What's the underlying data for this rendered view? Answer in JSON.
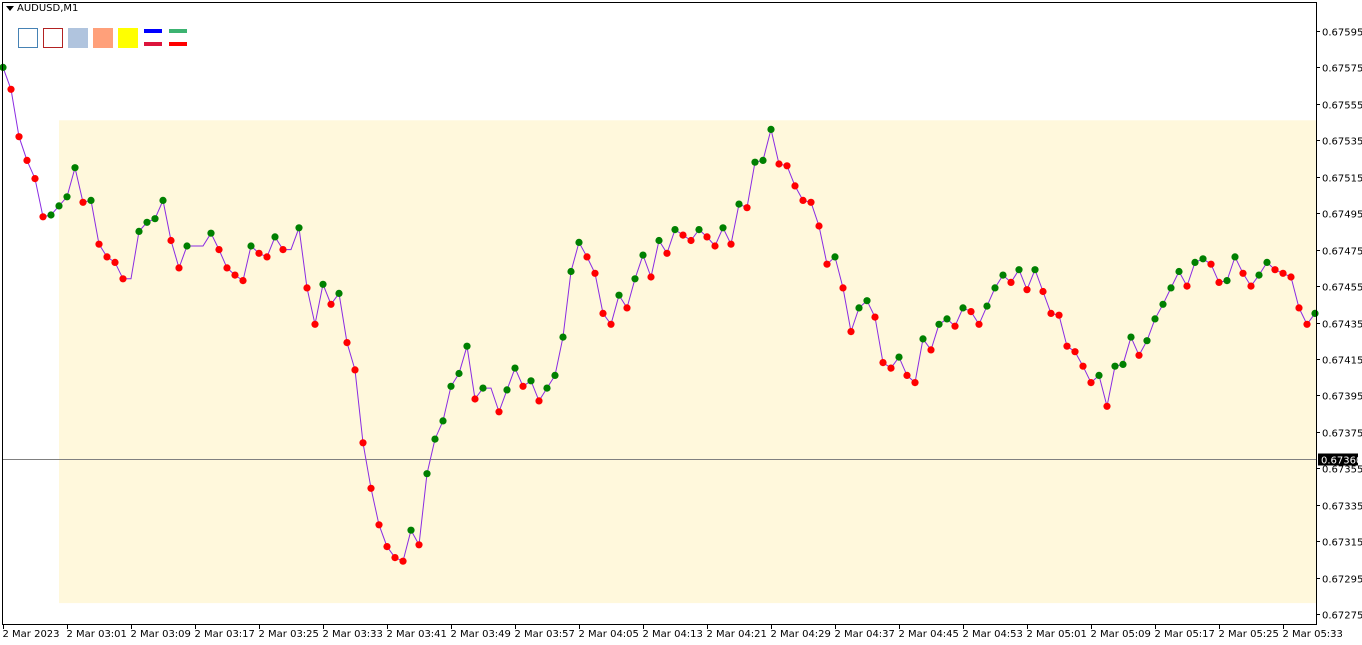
{
  "header": {
    "symbol_label": "AUDUSD,M1"
  },
  "toolbar": {
    "tools": [
      {
        "name": "rectangle-outline-blue-tool",
        "border": "#4682b4",
        "fill": "#ffffff"
      },
      {
        "name": "rectangle-outline-red-tool",
        "border": "#b22222",
        "fill": "#ffffff"
      },
      {
        "name": "rectangle-filled-steelblue-tool",
        "border": "#b0c4de",
        "fill": "#b0c4de"
      },
      {
        "name": "rectangle-filled-salmon-tool",
        "border": "#ffa07a",
        "fill": "#ffa07a"
      },
      {
        "name": "rectangle-filled-yellow-tool",
        "border": "#ffff00",
        "fill": "#ffff00"
      }
    ],
    "line_tools": [
      {
        "name": "line-pair-blue-crimson-tool",
        "top": "#0000ff",
        "bottom": "#dc143c"
      },
      {
        "name": "line-pair-green-red-tool",
        "top": "#3cb371",
        "bottom": "#ff0000"
      }
    ]
  },
  "chart_data": {
    "type": "line",
    "symbol": "AUDUSD",
    "timeframe": "M1",
    "date": "2 Mar 2023",
    "start_time": "02:53",
    "interval_minutes": 1,
    "values": [
      0.67575,
      0.67563,
      0.67537,
      0.67524,
      0.67514,
      0.67493,
      0.67494,
      0.67499,
      0.67504,
      0.6752,
      0.67501,
      0.67502,
      0.67478,
      0.67471,
      0.67468,
      0.67459,
      0.67459,
      0.67485,
      0.6749,
      0.67492,
      0.67502,
      0.6748,
      0.67465,
      0.67477,
      0.67477,
      0.67477,
      0.67484,
      0.67475,
      0.67465,
      0.67461,
      0.67458,
      0.67477,
      0.67473,
      0.67471,
      0.67482,
      0.67475,
      0.67475,
      0.67487,
      0.67454,
      0.67434,
      0.67456,
      0.67445,
      0.67451,
      0.67424,
      0.67409,
      0.67369,
      0.67344,
      0.67324,
      0.67312,
      0.67306,
      0.67304,
      0.67321,
      0.67313,
      0.67352,
      0.67371,
      0.67381,
      0.674,
      0.67407,
      0.67422,
      0.67393,
      0.67399,
      0.67399,
      0.67386,
      0.67398,
      0.6741,
      0.674,
      0.67403,
      0.67392,
      0.67399,
      0.67406,
      0.67427,
      0.67463,
      0.67479,
      0.67471,
      0.67462,
      0.6744,
      0.67434,
      0.6745,
      0.67443,
      0.67459,
      0.67472,
      0.6746,
      0.6748,
      0.67473,
      0.67486,
      0.67483,
      0.6748,
      0.67486,
      0.67482,
      0.67477,
      0.67487,
      0.67478,
      0.675,
      0.67498,
      0.67523,
      0.67524,
      0.67541,
      0.67522,
      0.67521,
      0.6751,
      0.67502,
      0.67501,
      0.67488,
      0.67467,
      0.67471,
      0.67454,
      0.6743,
      0.67443,
      0.67447,
      0.67438,
      0.67413,
      0.6741,
      0.67416,
      0.67406,
      0.67402,
      0.67426,
      0.6742,
      0.67434,
      0.67437,
      0.67433,
      0.67443,
      0.67441,
      0.67434,
      0.67444,
      0.67454,
      0.67461,
      0.67457,
      0.67464,
      0.67453,
      0.67464,
      0.67452,
      0.6744,
      0.67439,
      0.67422,
      0.67419,
      0.67411,
      0.67402,
      0.67406,
      0.67389,
      0.67411,
      0.67412,
      0.67427,
      0.67417,
      0.67425,
      0.67437,
      0.67445,
      0.67454,
      0.67463,
      0.67455,
      0.67468,
      0.6747,
      0.67467,
      0.67457,
      0.67458,
      0.67471,
      0.67462,
      0.67455,
      0.67461,
      0.67468,
      0.67464,
      0.67462,
      0.6746,
      0.67443,
      0.67434,
      0.6744
    ],
    "directions": "GRRRRRGGGGRGRRRRNGGGGRRGNNGRRRRGRRGRNGRRGRGRRRRRRRRGRGGGGGGRGNRGGRGRGGGGGRRRRGRGGRGRGRRGRRGRGRGGGRRRRRRRGRRGGRRRGRRGRGGRGRRGGGRGRGRRRRRRRGRGGGRGGGGGRGGRRGGRRGGRRRRRG",
    "direction_colors": {
      "G": "#008000",
      "R": "#ff0000"
    },
    "line_color": "#8a2be2",
    "zone": {
      "price_top": 0.67546,
      "price_bottom": 0.67281,
      "start_time": "03:00",
      "color": "#fff8dc"
    },
    "bid_line": {
      "price": 0.6736,
      "label": "0.67360",
      "color": "#808080"
    },
    "ylim": [
      0.672685,
      0.676035
    ],
    "yticks": [
      "0.67595",
      "0.67575",
      "0.67555",
      "0.67535",
      "0.67515",
      "0.67495",
      "0.67475",
      "0.67455",
      "0.67435",
      "0.67415",
      "0.67395",
      "0.67375",
      "0.67355",
      "0.67335",
      "0.67315",
      "0.67295",
      "0.67275"
    ],
    "xticks": [
      "2 Mar 2023",
      "2 Mar 03:01",
      "2 Mar 03:09",
      "2 Mar 03:17",
      "2 Mar 03:25",
      "2 Mar 03:33",
      "2 Mar 03:41",
      "2 Mar 03:49",
      "2 Mar 03:57",
      "2 Mar 04:05",
      "2 Mar 04:13",
      "2 Mar 04:21",
      "2 Mar 04:29",
      "2 Mar 04:37",
      "2 Mar 04:45",
      "2 Mar 04:53",
      "2 Mar 05:01",
      "2 Mar 05:09",
      "2 Mar 05:17",
      "2 Mar 05:25",
      "2 Mar 05:33"
    ],
    "xtick_minutes_from_start": [
      0,
      8,
      16,
      24,
      32,
      40,
      48,
      56,
      64,
      72,
      80,
      88,
      96,
      104,
      112,
      120,
      128,
      136,
      144,
      152,
      160
    ]
  }
}
